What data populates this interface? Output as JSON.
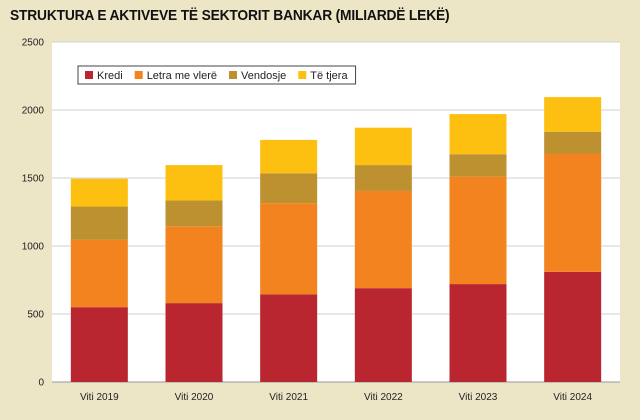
{
  "chart_data": {
    "type": "bar",
    "stacked": true,
    "title": "STRUKTURA E AKTIVEVE TË SEKTORIT BANKAR (MILIARDË LEKË)",
    "xlabel": "",
    "ylabel": "",
    "categories": [
      "Viti 2019",
      "Viti 2020",
      "Viti 2021",
      "Viti 2022",
      "Viti 2023",
      "Viti 2024"
    ],
    "ylim": [
      0,
      2500
    ],
    "yticks": [
      0,
      500,
      1000,
      1500,
      2000,
      2500
    ],
    "grid": true,
    "legend_position": "top-left",
    "series": [
      {
        "name": "Kredi",
        "color": "#b9262f",
        "values": [
          550,
          580,
          645,
          690,
          720,
          810
        ]
      },
      {
        "name": "Letra me vlerë",
        "color": "#f3831f",
        "values": [
          495,
          565,
          670,
          715,
          790,
          870
        ]
      },
      {
        "name": "Vendosje",
        "color": "#bd9030",
        "values": [
          245,
          190,
          220,
          190,
          165,
          160
        ]
      },
      {
        "name": "Të tjera",
        "color": "#fdc010",
        "values": [
          205,
          260,
          245,
          275,
          295,
          255
        ]
      }
    ]
  }
}
